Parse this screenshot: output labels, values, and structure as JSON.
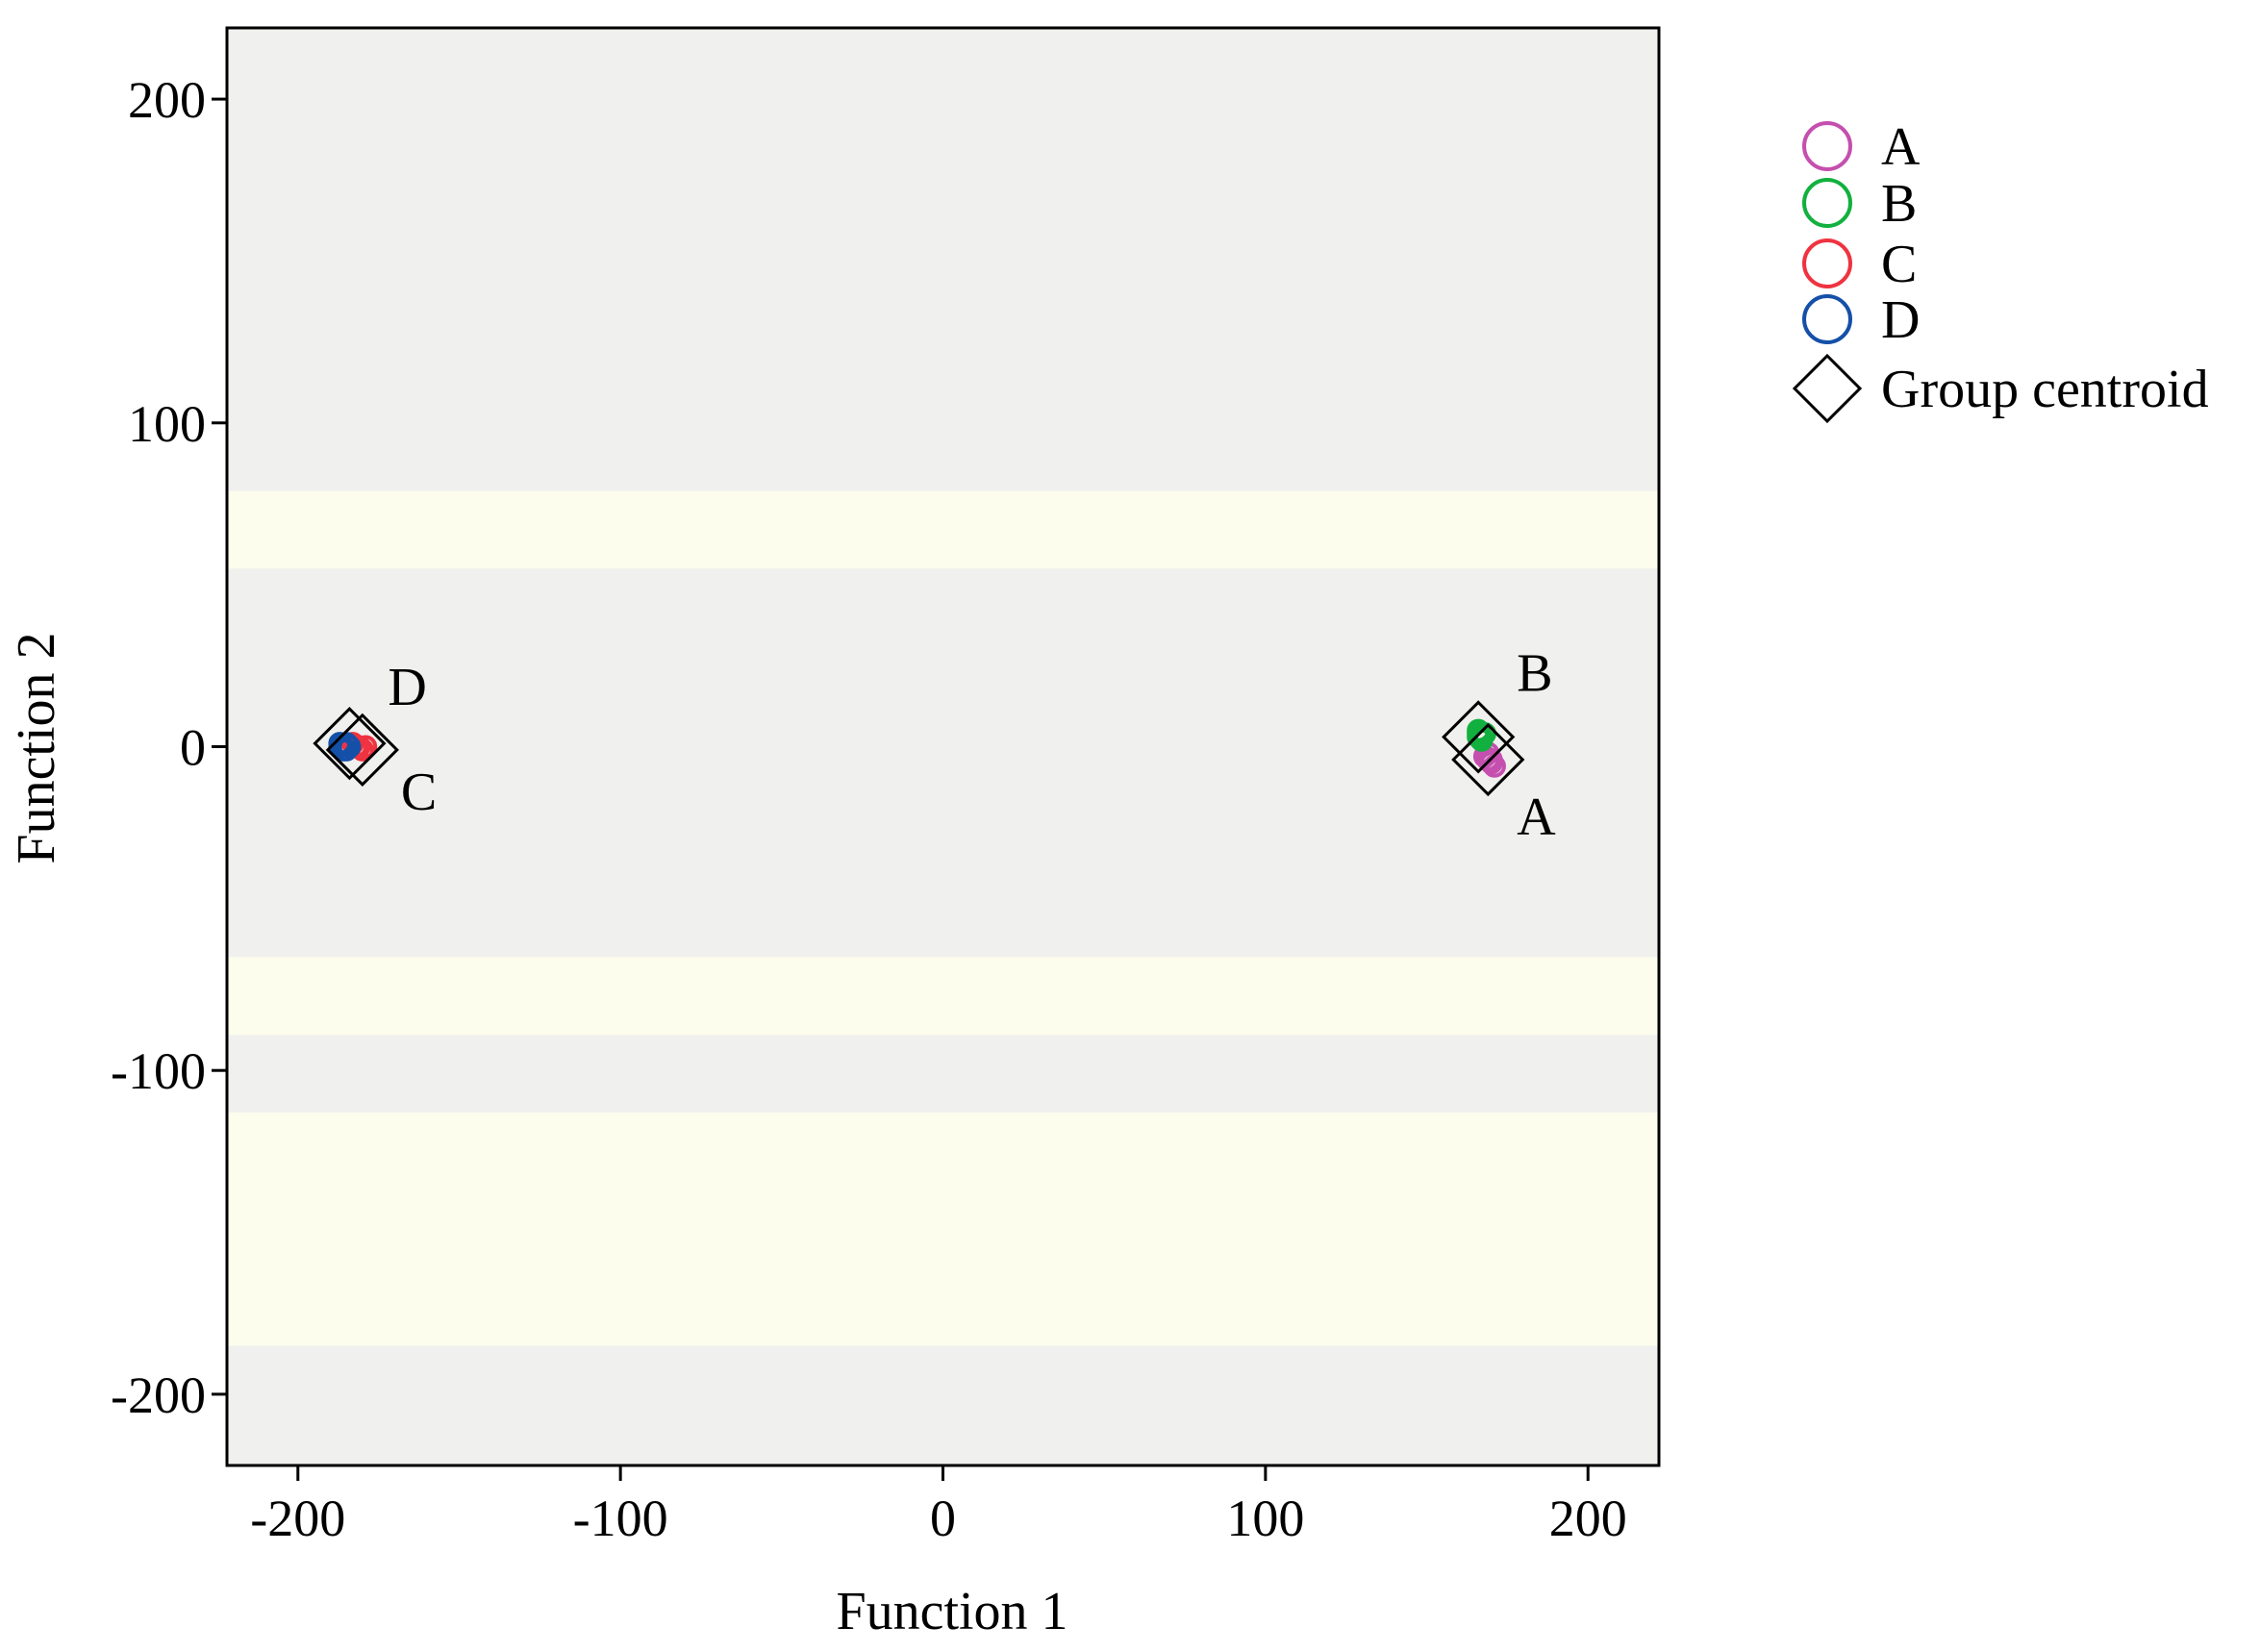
{
  "chart_data": {
    "type": "scatter",
    "xlabel": "Function 1",
    "ylabel": "Function 2",
    "xlim": [
      -222,
      222
    ],
    "ylim": [
      -222,
      222
    ],
    "xticks": [
      -200,
      -100,
      0,
      100,
      200
    ],
    "yticks": [
      200,
      100,
      0,
      -100,
      -200
    ],
    "xtick_labels": [
      "-200",
      "-100",
      "0",
      "100",
      "200"
    ],
    "ytick_labels": [
      "200",
      "100",
      "0",
      "-100",
      "-200"
    ],
    "grid": false,
    "plot_background": "#f0f0ee",
    "legend_position": "right",
    "bands": [
      {
        "y_from": 55,
        "y_to": 79,
        "color": "#fdfdee"
      },
      {
        "y_from": -89,
        "y_to": -65,
        "color": "#fdfdee"
      },
      {
        "y_from": -185,
        "y_to": -113,
        "color": "#fdfdee"
      }
    ],
    "series": [
      {
        "name": "A",
        "color": "#c54fae",
        "points": [
          [
            169,
            -4
          ],
          [
            170,
            -5
          ],
          [
            168,
            -3
          ],
          [
            171,
            -6
          ],
          [
            169,
            -2
          ],
          [
            170,
            -4
          ]
        ]
      },
      {
        "name": "B",
        "color": "#12b03e",
        "points": [
          [
            166,
            4
          ],
          [
            167,
            3
          ],
          [
            166,
            5
          ],
          [
            168,
            4
          ],
          [
            167,
            2
          ],
          [
            166,
            3
          ]
        ]
      },
      {
        "name": "C",
        "color": "#ef3340",
        "points": [
          [
            -182,
            0
          ],
          [
            -180,
            -1
          ],
          [
            -183,
            1
          ],
          [
            -181,
            0
          ],
          [
            -179,
            0
          ]
        ]
      },
      {
        "name": "D",
        "color": "#1550a8",
        "points": [
          [
            -187,
            0
          ],
          [
            -185,
            1
          ],
          [
            -186,
            -1
          ],
          [
            -184,
            0
          ],
          [
            -187,
            1
          ],
          [
            -185,
            -1
          ]
        ]
      }
    ],
    "centroids": [
      {
        "group": "A",
        "x": 169,
        "y": -4,
        "label": "A"
      },
      {
        "group": "B",
        "x": 166,
        "y": 3,
        "label": "B"
      },
      {
        "group": "C",
        "x": -180,
        "y": -1,
        "label": "C"
      },
      {
        "group": "D",
        "x": -184,
        "y": 1,
        "label": "D"
      }
    ],
    "legend": [
      {
        "label": "A",
        "marker": "circle",
        "color": "#c54fae"
      },
      {
        "label": "B",
        "marker": "circle",
        "color": "#12b03e"
      },
      {
        "label": "C",
        "marker": "circle",
        "color": "#ef3340"
      },
      {
        "label": "D",
        "marker": "circle",
        "color": "#1550a8"
      },
      {
        "label": "Group centroid",
        "marker": "diamond",
        "color": "#000000"
      }
    ]
  }
}
